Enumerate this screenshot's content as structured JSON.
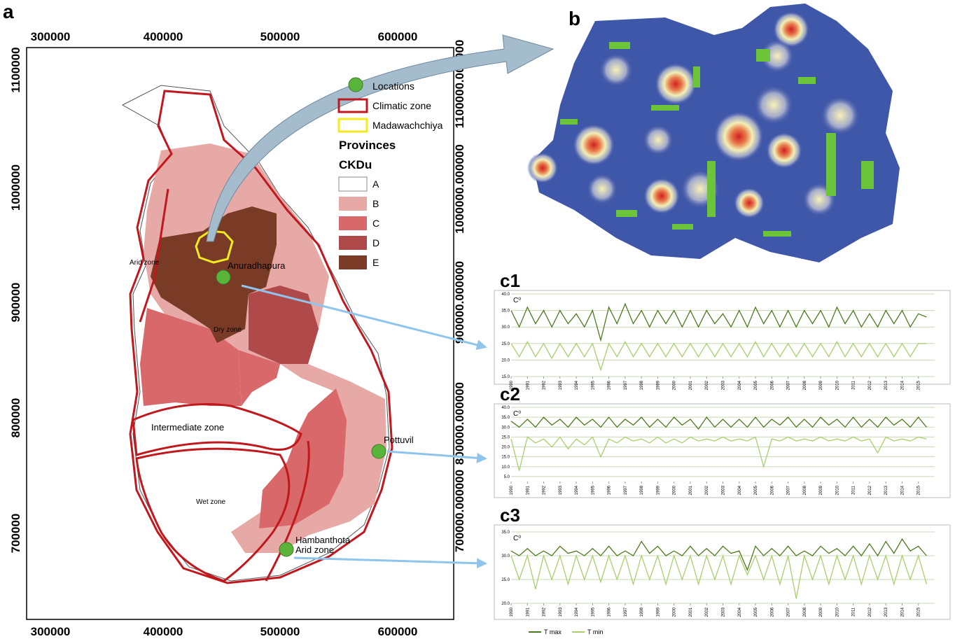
{
  "panel_a": {
    "label": "a",
    "x_ticks": [
      "300000",
      "400000",
      "500000",
      "600000"
    ],
    "y_ticks_left": [
      "1100000",
      "1000000",
      "900000",
      "800000",
      "700000"
    ],
    "y_ticks_right": [
      "1100000.000000",
      "1000000.000000",
      "900000.000000",
      "800000.000000",
      "700000.000000"
    ],
    "legend": {
      "locations": "Locations",
      "climatic_zone": "Climatic zone",
      "madawachchiya": "Madawachchiya",
      "provinces": "Provinces",
      "ckdu": "CKDu",
      "classes": [
        "A",
        "B",
        "C",
        "D",
        "E"
      ]
    },
    "places": [
      "Anuradhapura",
      "Pottuvil",
      "Hambanthota"
    ],
    "zones": [
      "Arid zone",
      "Dry zone",
      "Intermediate zone",
      "Wet zone",
      "Arid zone"
    ]
  },
  "panel_b": {
    "label": "b"
  },
  "chart_data": [
    {
      "type": "line",
      "title": "c1",
      "ylabel": "C⁰",
      "x": [
        1990,
        1990.5,
        1991,
        1991.5,
        1992,
        1992.5,
        1993,
        1993.5,
        1994,
        1994.5,
        1995,
        1995.5,
        1996,
        1996.5,
        1997,
        1997.5,
        1998,
        1998.5,
        1999,
        1999.5,
        2000,
        2000.5,
        2001,
        2001.5,
        2002,
        2002.5,
        2003,
        2003.5,
        2004,
        2004.5,
        2005,
        2005.5,
        2006,
        2006.5,
        2007,
        2007.5,
        2008,
        2008.5,
        2009,
        2009.5,
        2010,
        2010.5,
        2011,
        2011.5,
        2012,
        2012.5,
        2013,
        2013.5,
        2014,
        2014.5,
        2015,
        2015.5
      ],
      "xlim": [
        1990,
        2016
      ],
      "xticks": [
        1990,
        1991,
        1992,
        1993,
        1994,
        1995,
        1996,
        1997,
        1998,
        1999,
        2000,
        2001,
        2002,
        2003,
        2004,
        2005,
        2006,
        2007,
        2008,
        2009,
        2010,
        2011,
        2012,
        2013,
        2014,
        2015
      ],
      "ylim": [
        15,
        40
      ],
      "yticks": [
        {
          "value": 15,
          "label": "15.0"
        },
        {
          "value": 20,
          "label": "20.0"
        },
        {
          "value": 25,
          "label": "25.0"
        },
        {
          "value": 30,
          "label": "30.0"
        },
        {
          "value": 35,
          "label": "35.0"
        },
        {
          "value": 40,
          "label": "40.0"
        }
      ],
      "grid": true,
      "series": [
        {
          "name": "T max",
          "color": "#4e7a1e",
          "values": [
            35,
            30,
            36,
            31,
            35,
            30,
            35,
            31,
            34,
            30,
            35,
            26,
            36,
            31,
            37,
            31,
            35,
            30,
            35,
            31,
            35,
            30,
            35,
            30,
            35,
            31,
            34,
            30,
            35,
            30,
            36,
            31,
            35,
            30,
            35,
            30,
            35,
            31,
            35,
            30,
            36,
            31,
            35,
            30,
            34,
            30,
            35,
            31,
            35,
            30,
            34,
            33
          ]
        },
        {
          "name": "T min",
          "color": "#a8cf6c",
          "values": [
            25,
            21,
            25.5,
            21,
            25,
            20.5,
            25,
            21,
            25,
            21,
            25,
            17,
            25,
            21,
            25.5,
            21,
            25,
            21,
            25,
            21,
            25,
            21,
            25,
            21,
            25,
            21,
            25,
            21,
            25,
            21,
            25.5,
            21,
            25,
            21,
            25,
            21,
            25,
            21,
            25,
            21,
            25.5,
            21,
            25,
            21,
            25,
            21,
            25,
            21,
            25,
            21,
            25,
            25
          ]
        }
      ]
    },
    {
      "type": "line",
      "title": "c2",
      "ylabel": "C⁰",
      "x": [
        1990,
        1990.5,
        1991,
        1991.5,
        1992,
        1992.5,
        1993,
        1993.5,
        1994,
        1994.5,
        1995,
        1995.5,
        1996,
        1996.5,
        1997,
        1997.5,
        1998,
        1998.5,
        1999,
        1999.5,
        2000,
        2000.5,
        2001,
        2001.5,
        2002,
        2002.5,
        2003,
        2003.5,
        2004,
        2004.5,
        2005,
        2005.5,
        2006,
        2006.5,
        2007,
        2007.5,
        2008,
        2008.5,
        2009,
        2009.5,
        2010,
        2010.5,
        2011,
        2011.5,
        2012,
        2012.5,
        2013,
        2013.5,
        2014,
        2014.5,
        2015,
        2015.5
      ],
      "xlim": [
        1990,
        2016
      ],
      "xticks": [
        1990,
        1991,
        1992,
        1993,
        1994,
        1995,
        1996,
        1997,
        1998,
        1999,
        2000,
        2001,
        2002,
        2003,
        2004,
        2005,
        2006,
        2007,
        2008,
        2009,
        2010,
        2011,
        2012,
        2013,
        2014,
        2015
      ],
      "ylim": [
        2.5,
        40
      ],
      "yticks": [
        {
          "value": 5,
          "label": "5.0"
        },
        {
          "value": 10,
          "label": "10.0"
        },
        {
          "value": 15,
          "label": "15.0"
        },
        {
          "value": 20,
          "label": "20.0"
        },
        {
          "value": 25,
          "label": "25.0"
        },
        {
          "value": 30,
          "label": "30.0"
        },
        {
          "value": 35,
          "label": "35.0"
        },
        {
          "value": 40,
          "label": "40.0"
        }
      ],
      "grid": true,
      "series": [
        {
          "name": "T max",
          "color": "#4e7a1e",
          "values": [
            33,
            30,
            34,
            30,
            35,
            31,
            34,
            30,
            35,
            31,
            34,
            30,
            35,
            30,
            34,
            31,
            35,
            30,
            34,
            30,
            35,
            31,
            34,
            29,
            35,
            30,
            34,
            30,
            34,
            30,
            35,
            30,
            34,
            31,
            35,
            30,
            34,
            30,
            35,
            31,
            34,
            30,
            35,
            30,
            34,
            30,
            35,
            31,
            34,
            30,
            35,
            30
          ]
        },
        {
          "name": "T min",
          "color": "#a8cf6c",
          "values": [
            24,
            8,
            25,
            22,
            24,
            20,
            25,
            19,
            24,
            21,
            25,
            15,
            24,
            22,
            25,
            23,
            24,
            22,
            25,
            22,
            24,
            22,
            25,
            23,
            24,
            23,
            25,
            23,
            24,
            23,
            25,
            10,
            24,
            23,
            25,
            23,
            24,
            23,
            25,
            23,
            24,
            23,
            25,
            23,
            24,
            17,
            25,
            23,
            24,
            23,
            25,
            24
          ]
        }
      ]
    },
    {
      "type": "line",
      "title": "c3",
      "ylabel": "C⁰",
      "x": [
        1990,
        1990.5,
        1991,
        1991.5,
        1992,
        1992.5,
        1993,
        1993.5,
        1994,
        1994.5,
        1995,
        1995.5,
        1996,
        1996.5,
        1997,
        1997.5,
        1998,
        1998.5,
        1999,
        1999.5,
        2000,
        2000.5,
        2001,
        2001.5,
        2002,
        2002.5,
        2003,
        2003.5,
        2004,
        2004.5,
        2005,
        2005.5,
        2006,
        2006.5,
        2007,
        2007.5,
        2008,
        2008.5,
        2009,
        2009.5,
        2010,
        2010.5,
        2011,
        2011.5,
        2012,
        2012.5,
        2013,
        2013.5,
        2014,
        2014.5,
        2015,
        2015.5
      ],
      "xlim": [
        1990,
        2016
      ],
      "xticks": [
        1990,
        1991,
        1992,
        1993,
        1994,
        1995,
        1996,
        1997,
        1998,
        1999,
        2000,
        2001,
        2002,
        2003,
        2004,
        2005,
        2006,
        2007,
        2008,
        2009,
        2010,
        2011,
        2012,
        2013,
        2014,
        2015
      ],
      "ylim": [
        20,
        35
      ],
      "yticks": [
        {
          "value": 20,
          "label": "20.0"
        },
        {
          "value": 25,
          "label": "25.0"
        },
        {
          "value": 30,
          "label": "30.0"
        },
        {
          "value": 35,
          "label": "35.0"
        }
      ],
      "grid": true,
      "series": [
        {
          "name": "T max",
          "color": "#4e7a1e",
          "values": [
            31,
            30,
            31.5,
            30,
            31,
            30,
            32,
            30.5,
            31,
            30,
            31.5,
            30,
            32,
            30,
            31,
            30,
            33,
            30.5,
            32,
            30,
            31,
            30,
            32,
            30,
            31.5,
            30,
            32,
            30.5,
            31,
            27,
            32,
            30,
            31.5,
            30,
            32,
            30,
            31,
            30,
            32,
            30.5,
            31.5,
            30,
            32,
            30,
            32.5,
            30,
            33,
            30.5,
            33.5,
            31,
            32,
            30
          ]
        },
        {
          "name": "T min",
          "color": "#a8cf6c",
          "values": [
            30,
            25,
            30,
            23,
            30,
            25,
            30,
            24,
            30,
            25,
            30,
            24.5,
            30,
            25,
            30,
            24,
            30,
            25,
            30,
            24,
            30,
            25,
            30,
            24,
            30,
            25,
            30,
            24,
            30,
            26,
            30,
            25,
            30,
            24,
            30,
            21,
            30,
            25,
            30,
            24,
            30,
            25,
            30,
            24,
            30,
            25,
            30,
            24,
            30,
            25,
            30,
            24
          ]
        }
      ]
    }
  ]
}
